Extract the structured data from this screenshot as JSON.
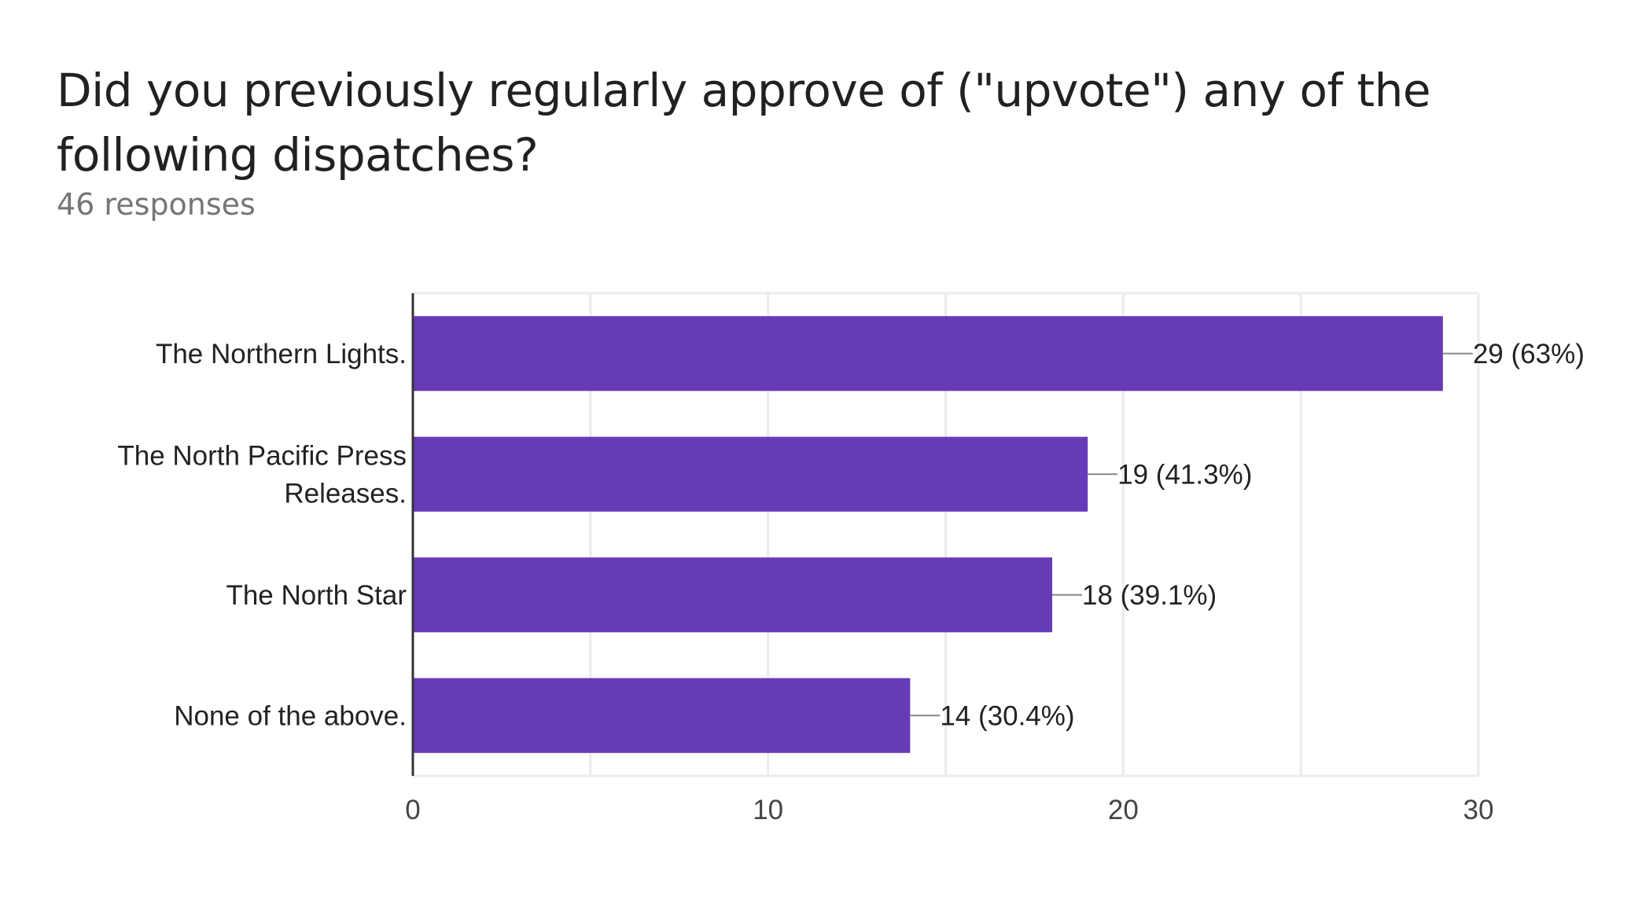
{
  "header": {
    "title": "Did you previously regularly approve of (\"upvote\") any of the following dispatches?",
    "subtitle": "46 responses"
  },
  "chart_data": {
    "type": "bar",
    "orientation": "horizontal",
    "categories": [
      [
        "The Northern Lights."
      ],
      [
        "The North Pacific Press",
        "Releases."
      ],
      [
        "The North Star"
      ],
      [
        "None of the above."
      ]
    ],
    "values": [
      29,
      19,
      18,
      14
    ],
    "value_labels": [
      "29 (63%)",
      "19 (41.3%)",
      "18 (39.1%)",
      "14 (30.4%)"
    ],
    "xlim": [
      0,
      30
    ],
    "xticks": [
      0,
      10,
      20,
      30
    ],
    "grid": true,
    "bar_color": "#673ab7"
  }
}
